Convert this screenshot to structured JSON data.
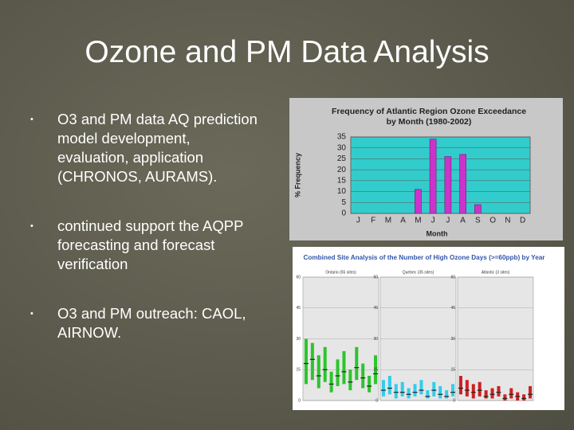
{
  "title": "Ozone and PM Data Analysis",
  "bullets": [
    "O3 and PM data AQ prediction model development, evaluation, application (CHRONOS, AURAMS).",
    "continued support the AQPP forecasting and forecast verification",
    "O3 and PM outreach: CAOL, AIRNOW."
  ],
  "chart_data": [
    {
      "type": "bar",
      "title": "Frequency of Atlantic Region Ozone Exceedance by Month (1980-2002)",
      "y_label": "% Frequency",
      "x_label": "Month",
      "categories": [
        "J",
        "F",
        "M",
        "A",
        "M",
        "J",
        "J",
        "A",
        "S",
        "O",
        "N",
        "D"
      ],
      "values": [
        0,
        0,
        0,
        0,
        11,
        34,
        26,
        27,
        4,
        0,
        0,
        0
      ],
      "color": "#cc33cc",
      "ylim": [
        0,
        35
      ],
      "yticks": [
        0,
        5,
        10,
        15,
        20,
        25,
        30,
        35
      ]
    },
    {
      "type": "box",
      "title": "Combined Site Analysis of the Number of High Ozone Days (>=60ppb) by Year",
      "ylim": [
        0,
        60
      ],
      "yticks": [
        0,
        15,
        30,
        45,
        60
      ],
      "panels": [
        {
          "name": "Ontario (55 sites)",
          "color": "#2dc42d",
          "boxes": [
            {
              "low": 8,
              "high": 30,
              "median": 18
            },
            {
              "low": 10,
              "high": 28,
              "median": 20
            },
            {
              "low": 6,
              "high": 22,
              "median": 12
            },
            {
              "low": 9,
              "high": 26,
              "median": 15
            },
            {
              "low": 4,
              "high": 14,
              "median": 8
            },
            {
              "low": 7,
              "high": 20,
              "median": 12
            },
            {
              "low": 8,
              "high": 24,
              "median": 14
            },
            {
              "low": 5,
              "high": 15,
              "median": 9
            },
            {
              "low": 10,
              "high": 26,
              "median": 16
            },
            {
              "low": 6,
              "high": 18,
              "median": 11
            },
            {
              "low": 4,
              "high": 12,
              "median": 7
            },
            {
              "low": 8,
              "high": 22,
              "median": 13
            }
          ]
        },
        {
          "name": "Quebec (35 sites)",
          "color": "#33ccee",
          "boxes": [
            {
              "low": 2,
              "high": 10,
              "median": 5
            },
            {
              "low": 3,
              "high": 12,
              "median": 6
            },
            {
              "low": 1,
              "high": 8,
              "median": 4
            },
            {
              "low": 2,
              "high": 9,
              "median": 4
            },
            {
              "low": 1,
              "high": 6,
              "median": 3
            },
            {
              "low": 2,
              "high": 8,
              "median": 4
            },
            {
              "low": 3,
              "high": 10,
              "median": 5
            },
            {
              "low": 1,
              "high": 5,
              "median": 2
            },
            {
              "low": 2,
              "high": 9,
              "median": 5
            },
            {
              "low": 1,
              "high": 7,
              "median": 3
            },
            {
              "low": 1,
              "high": 5,
              "median": 2
            },
            {
              "low": 2,
              "high": 8,
              "median": 4
            }
          ]
        },
        {
          "name": "Atlantic (3 sites)",
          "color": "#cc2222",
          "boxes": [
            {
              "low": 3,
              "high": 12,
              "median": 6
            },
            {
              "low": 2,
              "high": 10,
              "median": 5
            },
            {
              "low": 1,
              "high": 8,
              "median": 4
            },
            {
              "low": 2,
              "high": 9,
              "median": 5
            },
            {
              "low": 1,
              "high": 5,
              "median": 2
            },
            {
              "low": 1,
              "high": 6,
              "median": 3
            },
            {
              "low": 2,
              "high": 7,
              "median": 4
            },
            {
              "low": 0,
              "high": 3,
              "median": 1
            },
            {
              "low": 1,
              "high": 6,
              "median": 3
            },
            {
              "low": 0,
              "high": 4,
              "median": 2
            },
            {
              "low": 0,
              "high": 3,
              "median": 1
            },
            {
              "low": 1,
              "high": 7,
              "median": 3
            }
          ]
        }
      ]
    }
  ]
}
